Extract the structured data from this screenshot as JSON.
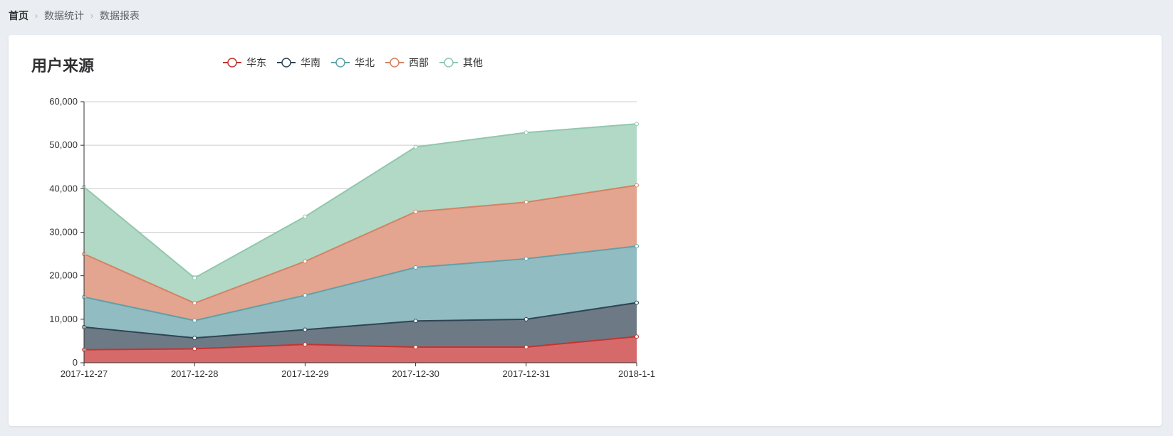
{
  "breadcrumb": {
    "items": [
      "首页",
      "数据统计",
      "数据报表"
    ]
  },
  "card": {
    "title": "用户来源"
  },
  "chart_data": {
    "type": "area",
    "stacked": true,
    "x": [
      "2017-12-27",
      "2017-12-28",
      "2017-12-29",
      "2017-12-30",
      "2017-12-31",
      "2018-1-1"
    ],
    "ylim": [
      0,
      60000
    ],
    "yticks": [
      "0",
      "10,000",
      "20,000",
      "30,000",
      "40,000",
      "50,000",
      "60,000"
    ],
    "ytick_values": [
      0,
      10000,
      20000,
      30000,
      40000,
      50000,
      60000
    ],
    "grid": true,
    "legend_position": "top",
    "series": [
      {
        "name": "华东",
        "values": [
          3000,
          3200,
          4200,
          3600,
          3600,
          6000
        ],
        "color": "#c23531",
        "fill": "#d66a6a"
      },
      {
        "name": "华南",
        "values": [
          5200,
          2500,
          3400,
          6000,
          6400,
          7800
        ],
        "color": "#2f4554",
        "fill": "#6d7a85"
      },
      {
        "name": "华北",
        "values": [
          6900,
          4000,
          7900,
          12300,
          13900,
          13000
        ],
        "color": "#61a0a8",
        "fill": "#90bcc2"
      },
      {
        "name": "西部",
        "values": [
          9900,
          4000,
          7800,
          12800,
          13000,
          14000
        ],
        "color": "#d48265",
        "fill": "#e3a58f"
      },
      {
        "name": "其他",
        "values": [
          15400,
          5800,
          10300,
          14900,
          16000,
          14100
        ],
        "color": "#91c7ae",
        "fill": "#b2d9c6"
      }
    ]
  }
}
